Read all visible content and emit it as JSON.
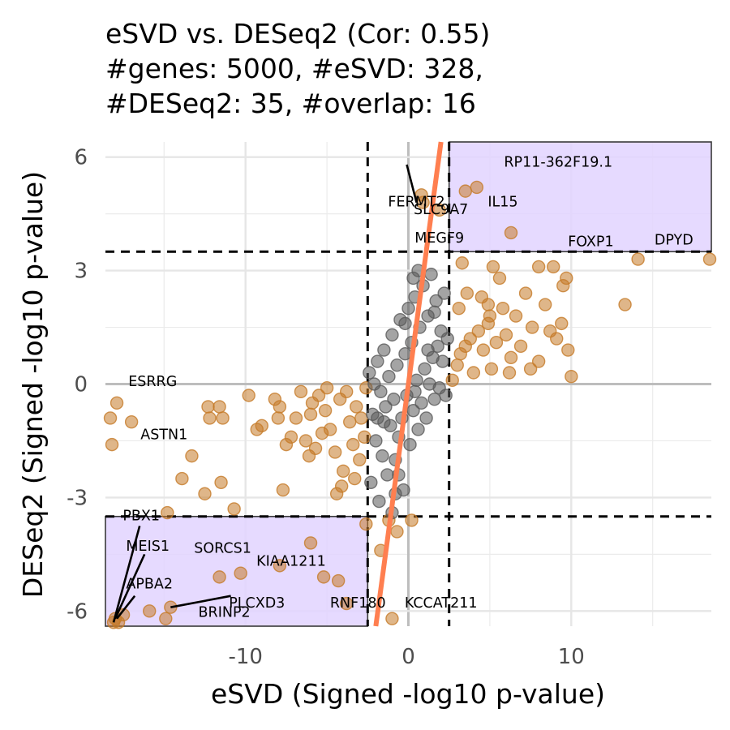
{
  "title": {
    "line1": "eSVD vs. DESeq2 (Cor: 0.55)",
    "line2": "#genes: 5000, #eSVD: 328,",
    "line3": "#DESeq2: 35, #overlap: 16"
  },
  "chart_data": {
    "type": "scatter",
    "xlabel": "eSVD (Signed -log10 p-value)",
    "ylabel": "DESeq2 (Signed -log10 p-value)",
    "xlim": [
      -18.6,
      18.6
    ],
    "ylim": [
      -6.4,
      6.4
    ],
    "x_ticks": [
      -10,
      0,
      10
    ],
    "x_tick_labels": [
      "-10",
      "0",
      "10"
    ],
    "y_ticks": [
      -6,
      -3,
      0,
      3,
      6
    ],
    "y_tick_labels": [
      "-6",
      "-3",
      "0",
      "3",
      "6"
    ],
    "grid": true,
    "thresholds": {
      "x": [
        -2.5,
        2.5
      ],
      "y": [
        -3.5,
        3.5
      ]
    },
    "regression_line": {
      "color": "#ff7f50",
      "slope": 3.2,
      "intercept": 0
    },
    "shaded_regions": [
      {
        "x": [
          2.5,
          18.6
        ],
        "y": [
          3.5,
          6.4
        ],
        "color": "#e2d4ff"
      },
      {
        "x": [
          -18.6,
          -2.5
        ],
        "y": [
          -6.4,
          -3.5
        ],
        "color": "#e2d4ff"
      }
    ],
    "colors": {
      "significant": "#c57a28",
      "nonsignificant": "#5a5a5a",
      "line": "#ff7f50",
      "highlight_fill": "#e2d4ff"
    },
    "series": [
      {
        "points": [
          [
            -18.3,
            -0.9
          ],
          [
            -18.2,
            -1.6
          ],
          [
            -17.9,
            -0.5
          ],
          [
            -17.0,
            -1.0
          ],
          [
            -13.3,
            -1.9
          ],
          [
            -12.3,
            -0.6
          ],
          [
            -12.2,
            -0.9
          ],
          [
            -11.6,
            -0.6
          ],
          [
            -11.4,
            -0.9
          ],
          [
            -9.8,
            -0.3
          ],
          [
            -9.3,
            -1.2
          ],
          [
            -9.0,
            -1.1
          ],
          [
            -8.2,
            -0.4
          ],
          [
            -8.0,
            -0.9
          ],
          [
            -7.9,
            -0.6
          ],
          [
            -7.5,
            -1.6
          ],
          [
            -7.2,
            -1.4
          ],
          [
            -6.9,
            -0.9
          ],
          [
            -6.6,
            -0.2
          ],
          [
            -6.3,
            -1.5
          ],
          [
            -6.1,
            -1.9
          ],
          [
            -5.9,
            -0.5
          ],
          [
            -5.7,
            -1.7
          ],
          [
            -5.5,
            -0.3
          ],
          [
            -5.3,
            -1.3
          ],
          [
            -5.0,
            -0.1
          ],
          [
            -4.8,
            -1.2
          ],
          [
            -4.5,
            -1.8
          ],
          [
            -4.2,
            -0.4
          ],
          [
            -4.0,
            -2.3
          ],
          [
            -3.8,
            -0.2
          ],
          [
            -3.6,
            -1.0
          ],
          [
            -3.4,
            -1.6
          ],
          [
            -3.2,
            -0.6
          ],
          [
            -3.0,
            -2.0
          ],
          [
            -2.9,
            -0.9
          ],
          [
            -2.7,
            -1.4
          ],
          [
            -2.6,
            -0.1
          ],
          [
            -4.4,
            -2.9
          ],
          [
            -4.1,
            -2.7
          ],
          [
            -7.7,
            -2.8
          ],
          [
            -12.5,
            -2.9
          ],
          [
            -11.5,
            -2.6
          ],
          [
            -14.8,
            -3.4
          ],
          [
            -10.7,
            -3.3
          ],
          [
            -13.9,
            -2.5
          ],
          [
            -6.0,
            -0.8
          ],
          [
            -5.1,
            -0.7
          ],
          [
            -3.3,
            -2.5
          ],
          [
            2.7,
            0.1
          ],
          [
            3.0,
            0.5
          ],
          [
            3.2,
            0.8
          ],
          [
            3.5,
            1.0
          ],
          [
            3.8,
            1.2
          ],
          [
            4.0,
            0.3
          ],
          [
            4.3,
            1.4
          ],
          [
            4.6,
            0.9
          ],
          [
            4.9,
            1.6
          ],
          [
            5.1,
            0.4
          ],
          [
            5.4,
            1.1
          ],
          [
            5.8,
            2.0
          ],
          [
            6.0,
            1.3
          ],
          [
            6.3,
            0.7
          ],
          [
            6.6,
            1.8
          ],
          [
            6.9,
            1.0
          ],
          [
            7.2,
            2.4
          ],
          [
            7.6,
            1.5
          ],
          [
            8.0,
            0.6
          ],
          [
            8.4,
            2.1
          ],
          [
            8.7,
            1.4
          ],
          [
            9.1,
            1.2
          ],
          [
            9.5,
            2.6
          ],
          [
            9.8,
            0.9
          ],
          [
            10.0,
            0.2
          ],
          [
            13.3,
            2.1
          ],
          [
            3.6,
            2.4
          ],
          [
            4.5,
            2.3
          ],
          [
            5.0,
            1.8
          ],
          [
            5.2,
            3.1
          ],
          [
            5.6,
            2.8
          ],
          [
            3.3,
            3.2
          ],
          [
            8.0,
            3.1
          ],
          [
            8.9,
            3.1
          ],
          [
            9.7,
            2.8
          ],
          [
            4.9,
            2.1
          ],
          [
            7.5,
            0.4
          ],
          [
            9.4,
            1.6
          ],
          [
            3.1,
            2.0
          ],
          [
            6.2,
            0.3
          ],
          [
            -2.6,
            -3.7
          ],
          [
            -1.7,
            -4.4
          ],
          [
            -1.2,
            -3.6
          ],
          [
            -0.7,
            -3.9
          ],
          [
            0.2,
            -3.6
          ],
          [
            -7.9,
            -4.8
          ],
          [
            -11.6,
            -5.1
          ],
          [
            -10.3,
            -5.0
          ],
          [
            -6.0,
            -4.2
          ],
          [
            -5.2,
            -5.1
          ],
          [
            -1.0,
            -6.2
          ],
          [
            -4.3,
            -5.2
          ],
          [
            -14.6,
            -5.9
          ],
          [
            -15.9,
            -6.0
          ],
          [
            -14.9,
            -6.2
          ],
          [
            -17.5,
            -6.1
          ],
          [
            -18.0,
            -6.2
          ],
          [
            -18.1,
            -6.3
          ],
          [
            -17.8,
            -6.3
          ],
          [
            -3.8,
            -5.8
          ],
          [
            3.5,
            5.1
          ],
          [
            4.2,
            5.2
          ],
          [
            6.3,
            4.0
          ],
          [
            14.1,
            3.3
          ],
          [
            18.5,
            3.3
          ],
          [
            1.9,
            4.6
          ],
          [
            0.8,
            5.0
          ],
          [
            0.9,
            4.8
          ]
        ],
        "color": "#c57a28"
      },
      {
        "points": [
          [
            -2.4,
            0.3
          ],
          [
            -2.2,
            -0.8
          ],
          [
            -2.0,
            -1.5
          ],
          [
            -1.9,
            0.6
          ],
          [
            -1.7,
            -0.2
          ],
          [
            -1.6,
            -1.9
          ],
          [
            -1.5,
            0.9
          ],
          [
            -1.4,
            -0.6
          ],
          [
            -1.3,
            -2.4
          ],
          [
            -1.2,
            0.2
          ],
          [
            -1.1,
            -1.1
          ],
          [
            -1.0,
            1.3
          ],
          [
            -0.9,
            -0.4
          ],
          [
            -0.8,
            -2.0
          ],
          [
            -0.7,
            0.5
          ],
          [
            -0.6,
            -1.4
          ],
          [
            -0.5,
            1.7
          ],
          [
            -0.4,
            -0.9
          ],
          [
            -0.3,
            -2.8
          ],
          [
            -0.2,
            0.8
          ],
          [
            -0.1,
            -0.3
          ],
          [
            0.0,
            2.0
          ],
          [
            0.1,
            -1.6
          ],
          [
            0.2,
            1.1
          ],
          [
            0.3,
            -0.7
          ],
          [
            0.4,
            2.3
          ],
          [
            0.5,
            0.1
          ],
          [
            0.6,
            -1.2
          ],
          [
            0.7,
            1.5
          ],
          [
            0.8,
            -0.5
          ],
          [
            0.9,
            2.6
          ],
          [
            1.0,
            0.4
          ],
          [
            1.1,
            -0.9
          ],
          [
            1.2,
            1.8
          ],
          [
            1.3,
            0.0
          ],
          [
            1.4,
            2.9
          ],
          [
            1.5,
            0.7
          ],
          [
            1.6,
            -0.4
          ],
          [
            1.7,
            2.2
          ],
          [
            1.8,
            1.0
          ],
          [
            1.9,
            -0.1
          ],
          [
            2.0,
            1.4
          ],
          [
            2.1,
            0.6
          ],
          [
            2.2,
            2.4
          ],
          [
            2.3,
            -0.3
          ],
          [
            2.4,
            1.2
          ],
          [
            -2.3,
            -2.6
          ],
          [
            -2.1,
            0.0
          ],
          [
            -1.8,
            -3.1
          ],
          [
            -1.0,
            -3.4
          ],
          [
            -0.6,
            -2.4
          ],
          [
            0.3,
            2.8
          ],
          [
            0.6,
            3.0
          ],
          [
            1.2,
            0.9
          ],
          [
            -0.2,
            1.6
          ],
          [
            -0.8,
            -2.9
          ],
          [
            0.4,
            -0.2
          ],
          [
            -1.5,
            -1.0
          ],
          [
            1.6,
            1.9
          ],
          [
            -1.9,
            -0.9
          ]
        ],
        "color": "#5a5a5a"
      }
    ],
    "annotations": [
      {
        "label": "FERMT2",
        "x": 0.5,
        "y": 4.8
      },
      {
        "label": "SLC9A7",
        "x": 2.0,
        "y": 4.6
      },
      {
        "label": "MEGF9",
        "x": 1.9,
        "y": 3.85
      },
      {
        "label": "RP11-362F19.1",
        "x": 9.2,
        "y": 5.85
      },
      {
        "label": "IL15",
        "x": 5.8,
        "y": 4.8
      },
      {
        "label": "FOXP1",
        "x": 11.2,
        "y": 3.75
      },
      {
        "label": "DPYD",
        "x": 16.3,
        "y": 3.8
      },
      {
        "label": "ESRRG",
        "x": -15.7,
        "y": 0.05
      },
      {
        "label": "ASTN1",
        "x": -15.0,
        "y": -1.35
      },
      {
        "label": "PBX1",
        "x": -16.4,
        "y": -3.5
      },
      {
        "label": "MEIS1",
        "x": -16.0,
        "y": -4.3
      },
      {
        "label": "SORCS1",
        "x": -11.4,
        "y": -4.35
      },
      {
        "label": "KIAA1211",
        "x": -7.2,
        "y": -4.7
      },
      {
        "label": "APBA2",
        "x": -15.9,
        "y": -5.3
      },
      {
        "label": "PLCXD3",
        "x": -9.3,
        "y": -5.8
      },
      {
        "label": "BRINP2",
        "x": -11.3,
        "y": -6.05
      },
      {
        "label": "RNF180",
        "x": -3.1,
        "y": -5.8
      },
      {
        "label": "KCCAT211",
        "x": 2.0,
        "y": -5.8
      }
    ],
    "leader_lines": [
      {
        "from": [
          -0.1,
          5.8
        ],
        "to": [
          0.5,
          4.8
        ]
      },
      {
        "from": [
          -16.5,
          -3.75
        ],
        "to": [
          -18.1,
          -6.3
        ]
      },
      {
        "from": [
          -16.2,
          -4.5
        ],
        "to": [
          -18.0,
          -6.2
        ]
      },
      {
        "from": [
          -16.8,
          -5.6
        ],
        "to": [
          -17.9,
          -6.2
        ]
      },
      {
        "from": [
          -10.9,
          -5.6
        ],
        "to": [
          -14.6,
          -5.9
        ]
      }
    ]
  }
}
